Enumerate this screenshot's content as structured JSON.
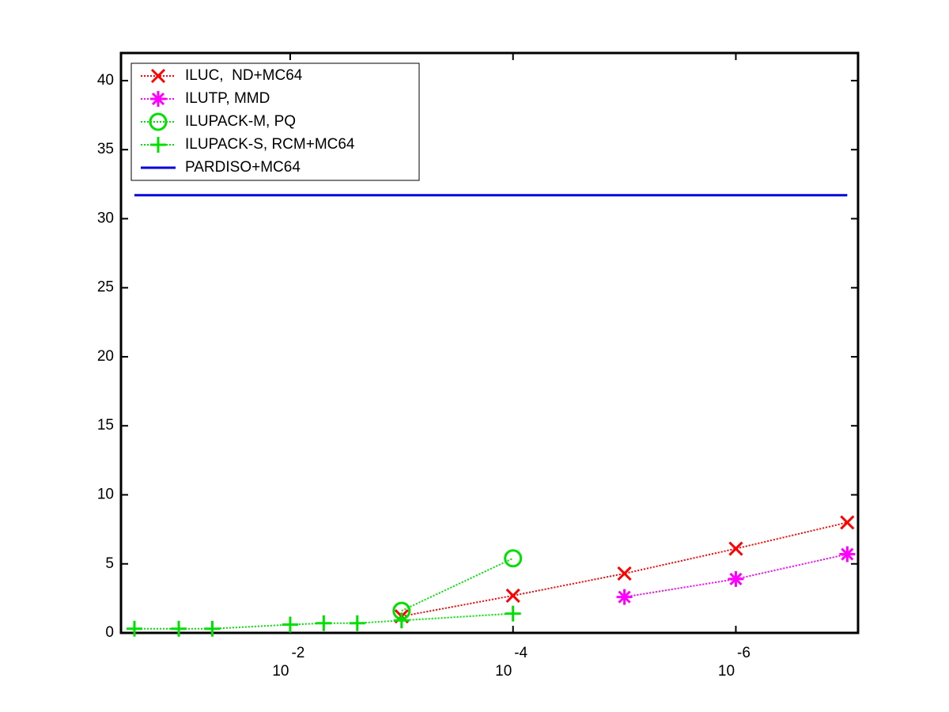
{
  "chart_data": {
    "type": "line",
    "xscale": "log",
    "xreversed": true,
    "xlim": [
      0.33,
      8e-08
    ],
    "ylim": [
      0,
      42
    ],
    "xticks": [
      {
        "value": 0.01,
        "label": "10",
        "exponent": "-2"
      },
      {
        "value": 0.0001,
        "label": "10",
        "exponent": "-4"
      },
      {
        "value": 1e-06,
        "label": "10",
        "exponent": "-6"
      }
    ],
    "yticks": [
      0,
      5,
      10,
      15,
      20,
      25,
      30,
      35,
      40
    ],
    "legend": "upper left",
    "series": [
      {
        "name": "ILUC,  ND+MC64",
        "color": "#ff0000",
        "marker": "x",
        "line_style": "dotted",
        "x": [
          0.001,
          0.0001,
          1e-05,
          1e-06,
          1e-07
        ],
        "values": [
          1.2,
          2.7,
          4.3,
          6.1,
          8.0
        ]
      },
      {
        "name": "ILUTP, MMD",
        "color": "#ff00ff",
        "marker": "*",
        "line_style": "dotted",
        "x": [
          1e-05,
          1e-06,
          1e-07
        ],
        "values": [
          2.6,
          3.9,
          5.7
        ]
      },
      {
        "name": "ILUPACK-M, PQ",
        "color": "#00e000",
        "marker": "o",
        "line_style": "dotted",
        "x": [
          0.001,
          0.0001
        ],
        "values": [
          1.6,
          5.4
        ]
      },
      {
        "name": "ILUPACK-S, RCM+MC64",
        "color": "#00e000",
        "marker": "+",
        "line_style": "dotted",
        "x": [
          0.25,
          0.1,
          0.05,
          0.01,
          0.005,
          0.0025,
          0.001,
          0.0001
        ],
        "values": [
          0.3,
          0.3,
          0.3,
          0.6,
          0.7,
          0.7,
          0.9,
          1.4
        ]
      },
      {
        "name": "PARDISO+MC64",
        "color": "#0000dd",
        "marker": "none",
        "line_style": "solid",
        "x": [
          0.25,
          1e-07
        ],
        "values": [
          31.7,
          31.7
        ]
      }
    ]
  }
}
